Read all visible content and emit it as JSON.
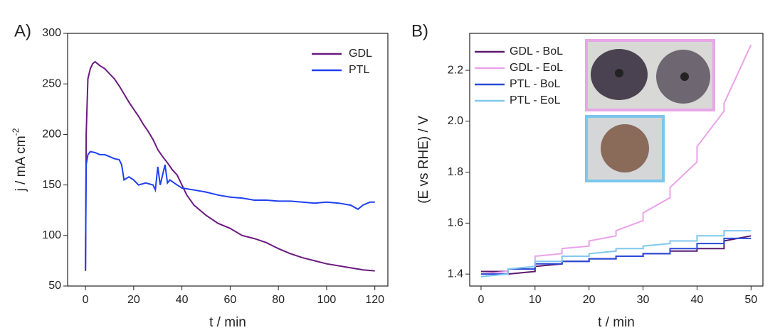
{
  "chart_data": [
    {
      "type": "line",
      "panel_label": "A)",
      "x_label": "t / min",
      "y_label": "j / mA cm",
      "y_label_superscript": "-2",
      "xlim": [
        -7.4,
        125.4
      ],
      "ylim": [
        50,
        300
      ],
      "xticks": [
        0,
        20,
        40,
        60,
        80,
        100,
        120
      ],
      "yticks": [
        50,
        100,
        150,
        200,
        250,
        300
      ],
      "legend": "upper right",
      "series": [
        {
          "name": "GDL",
          "color": "#6a1a80",
          "x": [
            0,
            0.3,
            1,
            2,
            3,
            4,
            5,
            6,
            8,
            10,
            12,
            14,
            16,
            18,
            20,
            22,
            24,
            26,
            28,
            30,
            32,
            34,
            36,
            38,
            40,
            42,
            45,
            50,
            55,
            60,
            65,
            70,
            75,
            80,
            85,
            90,
            95,
            100,
            105,
            110,
            115,
            120
          ],
          "values": [
            65,
            200,
            255,
            265,
            270,
            272,
            270,
            268,
            265,
            260,
            255,
            248,
            240,
            232,
            225,
            218,
            210,
            203,
            195,
            185,
            178,
            172,
            165,
            160,
            150,
            140,
            130,
            120,
            112,
            107,
            100,
            97,
            93,
            87,
            82,
            78,
            75,
            72,
            70,
            68,
            66,
            65
          ]
        },
        {
          "name": "PTL",
          "color": "#2040f0",
          "x": [
            0,
            0.3,
            1,
            2,
            4,
            6,
            8,
            10,
            12,
            14,
            15,
            16,
            18,
            20,
            22,
            25,
            28,
            29,
            30,
            31,
            33,
            34,
            35,
            38,
            40,
            45,
            50,
            55,
            60,
            65,
            70,
            75,
            80,
            85,
            90,
            95,
            100,
            105,
            110,
            113,
            115,
            118,
            120
          ],
          "values": [
            65,
            170,
            180,
            183,
            182,
            180,
            180,
            178,
            176,
            175,
            170,
            155,
            158,
            155,
            150,
            152,
            150,
            145,
            168,
            150,
            170,
            152,
            155,
            150,
            147,
            145,
            143,
            140,
            138,
            137,
            135,
            135,
            134,
            134,
            133,
            132,
            133,
            132,
            130,
            126,
            130,
            133,
            133
          ]
        }
      ]
    },
    {
      "type": "line",
      "panel_label": "B)",
      "x_label": "t / min",
      "y_label": "(E vs RHE) / V",
      "xlim": [
        -2.1,
        52.2
      ],
      "ylim": [
        1.353,
        2.345
      ],
      "xticks": [
        0,
        10,
        20,
        30,
        40,
        50
      ],
      "yticks": [
        1.4,
        1.6,
        1.8,
        {
          "value": 2,
          "label": "2.0"
        },
        2.2
      ],
      "legend": "upper left",
      "x": [
        0,
        5,
        5,
        10,
        10,
        15,
        15,
        20,
        20,
        25,
        25,
        30,
        30,
        35,
        35,
        40,
        40,
        45,
        45,
        50
      ],
      "series": [
        {
          "name": "GDL - BoL",
          "color": "#5c1a6e",
          "values": [
            1.41,
            1.41,
            1.4,
            1.41,
            1.43,
            1.44,
            1.45,
            1.45,
            1.46,
            1.46,
            1.47,
            1.47,
            1.48,
            1.48,
            1.49,
            1.49,
            1.5,
            1.5,
            1.53,
            1.55
          ]
        },
        {
          "name": "GDL - EoL",
          "color": "#eaa2ea",
          "values": [
            1.4,
            1.41,
            1.42,
            1.43,
            1.47,
            1.48,
            1.5,
            1.51,
            1.53,
            1.55,
            1.57,
            1.61,
            1.64,
            1.7,
            1.74,
            1.84,
            1.9,
            2.04,
            2.07,
            2.3
          ]
        },
        {
          "name": "PTL - BoL",
          "color": "#2a4ad8",
          "values": [
            1.4,
            1.4,
            1.42,
            1.42,
            1.44,
            1.44,
            1.45,
            1.45,
            1.46,
            1.46,
            1.47,
            1.47,
            1.48,
            1.48,
            1.5,
            1.5,
            1.52,
            1.52,
            1.54,
            1.54
          ]
        },
        {
          "name": "PTL - EoL",
          "color": "#7fc8ee",
          "values": [
            1.39,
            1.4,
            1.42,
            1.43,
            1.45,
            1.45,
            1.47,
            1.47,
            1.48,
            1.49,
            1.5,
            1.5,
            1.51,
            1.52,
            1.53,
            1.53,
            1.55,
            1.55,
            1.57,
            1.57
          ]
        }
      ]
    }
  ]
}
